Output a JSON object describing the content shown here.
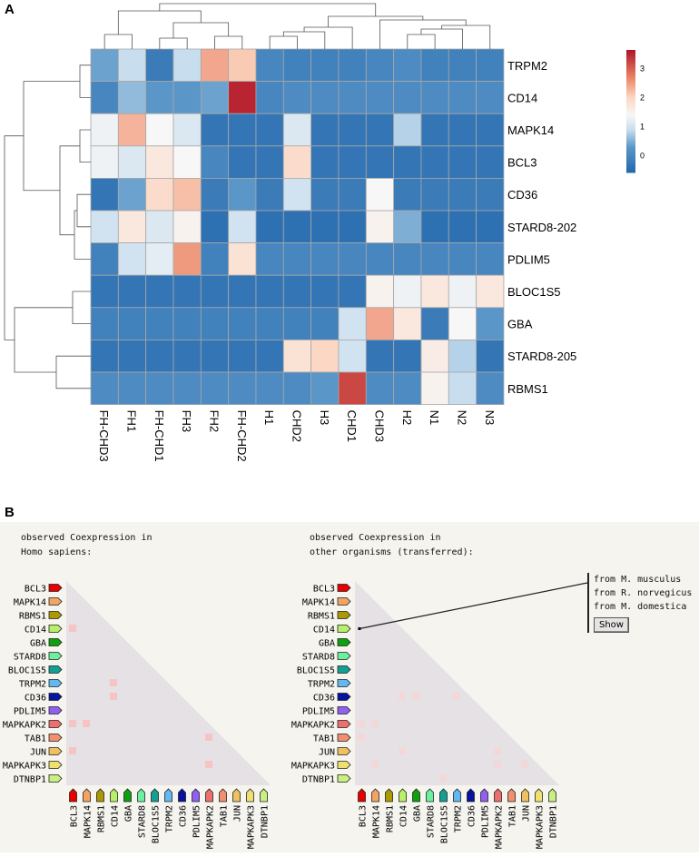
{
  "panels": {
    "a": "A",
    "b": "B"
  },
  "chart_data": [
    {
      "type": "heatmap",
      "title": "",
      "columns": [
        "FH-CHD3",
        "FH1",
        "FH-CHD1",
        "FH3",
        "FH2",
        "FH-CHD2",
        "H1",
        "CHD2",
        "H3",
        "CHD1",
        "CHD3",
        "H2",
        "N1",
        "N2",
        "N3"
      ],
      "rows": [
        "TRPM2",
        "CD14",
        "MAPK14",
        "BCL3",
        "CD36",
        "STARD8-202",
        "PDLIM5",
        "BLOC1S5",
        "GBA",
        "STARD8-205",
        "RBMS1"
      ],
      "values": [
        [
          0.4,
          0.9,
          -0.2,
          0.9,
          2.4,
          2.1,
          0.0,
          -0.1,
          -0.1,
          -0.1,
          0.0,
          0.1,
          -0.1,
          -0.1,
          -0.1
        ],
        [
          0.0,
          0.6,
          0.3,
          0.3,
          0.4,
          3.5,
          0.0,
          0.1,
          0.1,
          0.1,
          0.1,
          0.1,
          0.1,
          0.1,
          0.1
        ],
        [
          1.3,
          2.3,
          1.4,
          1.1,
          -0.3,
          -0.3,
          -0.3,
          1.1,
          -0.3,
          -0.3,
          -0.3,
          0.8,
          -0.3,
          -0.3,
          -0.3
        ],
        [
          1.3,
          1.1,
          1.7,
          1.4,
          0.0,
          -0.3,
          -0.3,
          1.9,
          -0.3,
          -0.3,
          -0.3,
          -0.3,
          -0.3,
          -0.3,
          -0.3
        ],
        [
          -0.3,
          0.4,
          1.9,
          2.2,
          -0.2,
          0.3,
          -0.2,
          1.0,
          -0.2,
          -0.2,
          1.4,
          -0.2,
          -0.2,
          -0.2,
          -0.2
        ],
        [
          1.0,
          1.7,
          1.1,
          1.5,
          -0.4,
          1.0,
          -0.4,
          -0.4,
          -0.4,
          -0.4,
          1.5,
          0.5,
          -0.4,
          -0.4,
          -0.4
        ],
        [
          -0.1,
          1.0,
          1.2,
          2.5,
          -0.1,
          1.8,
          0.0,
          0.0,
          0.0,
          0.0,
          0.0,
          0.0,
          0.0,
          0.0,
          0.0
        ],
        [
          -0.3,
          -0.3,
          -0.3,
          -0.3,
          -0.3,
          -0.3,
          -0.3,
          -0.3,
          -0.3,
          -0.3,
          1.5,
          1.3,
          1.7,
          1.3,
          1.7
        ],
        [
          -0.1,
          -0.1,
          -0.1,
          -0.1,
          -0.1,
          -0.1,
          -0.1,
          -0.1,
          -0.1,
          1.0,
          2.4,
          1.7,
          -0.2,
          1.4,
          0.3
        ],
        [
          -0.3,
          -0.3,
          -0.3,
          -0.3,
          -0.3,
          -0.3,
          -0.3,
          1.8,
          2.0,
          1.0,
          -0.3,
          -0.3,
          1.6,
          0.8,
          -0.3
        ],
        [
          0.1,
          0.1,
          0.1,
          0.1,
          0.1,
          0.1,
          0.1,
          0.1,
          0.3,
          3.2,
          0.1,
          0.1,
          1.5,
          0.9,
          0.1
        ]
      ],
      "colorbar": {
        "ticks": [
          "3",
          "2",
          "1",
          "0"
        ],
        "tick_values": [
          3,
          2,
          1,
          0
        ],
        "range": [
          -0.6,
          3.6
        ]
      },
      "colors": {
        "low": "#2166ac",
        "mid": "#f7f7f7",
        "high": "#b2182b"
      },
      "dendrograms": {
        "rows": true,
        "columns": true
      }
    },
    {
      "type": "heatmap",
      "subtype": "triangular-coexpression",
      "genes": [
        "BCL3",
        "MAPK14",
        "RBMS1",
        "CD14",
        "GBA",
        "STARD8",
        "BLOC1S5",
        "TRPM2",
        "CD36",
        "PDLIM5",
        "MAPKAPK2",
        "TAB1",
        "JUN",
        "MAPKAPK3",
        "DTNBP1"
      ],
      "gene_colors": [
        "#e60000",
        "#f2a463",
        "#a89a00",
        "#b8f06a",
        "#0ea00e",
        "#6cf0a0",
        "#12a090",
        "#62b8f0",
        "#0612a0",
        "#9060f0",
        "#ef6e6e",
        "#f09070",
        "#f0c060",
        "#f0e070",
        "#c8f080"
      ],
      "plots": [
        {
          "title": "observed Coexpression in\nHomo sapiens:",
          "cells": [
            [
              3,
              0
            ],
            [
              7,
              3
            ],
            [
              8,
              3
            ],
            [
              10,
              0
            ],
            [
              10,
              1
            ],
            [
              11,
              10
            ],
            [
              12,
              0
            ],
            [
              13,
              10
            ]
          ]
        },
        {
          "title": "observed Coexpression in\nother organisms (transferred):",
          "cells": [
            [
              8,
              3
            ],
            [
              8,
              4
            ],
            [
              8,
              7
            ],
            [
              10,
              0
            ],
            [
              10,
              1
            ],
            [
              11,
              0
            ],
            [
              12,
              3
            ],
            [
              12,
              10
            ],
            [
              13,
              1
            ],
            [
              13,
              10
            ],
            [
              13,
              12
            ],
            [
              14,
              6
            ]
          ],
          "selected": [
            3,
            0
          ]
        }
      ],
      "popup": {
        "items": [
          "from M. musculus",
          "from R. norvegicus",
          "from M. domestica"
        ],
        "button": "Show"
      }
    }
  ]
}
